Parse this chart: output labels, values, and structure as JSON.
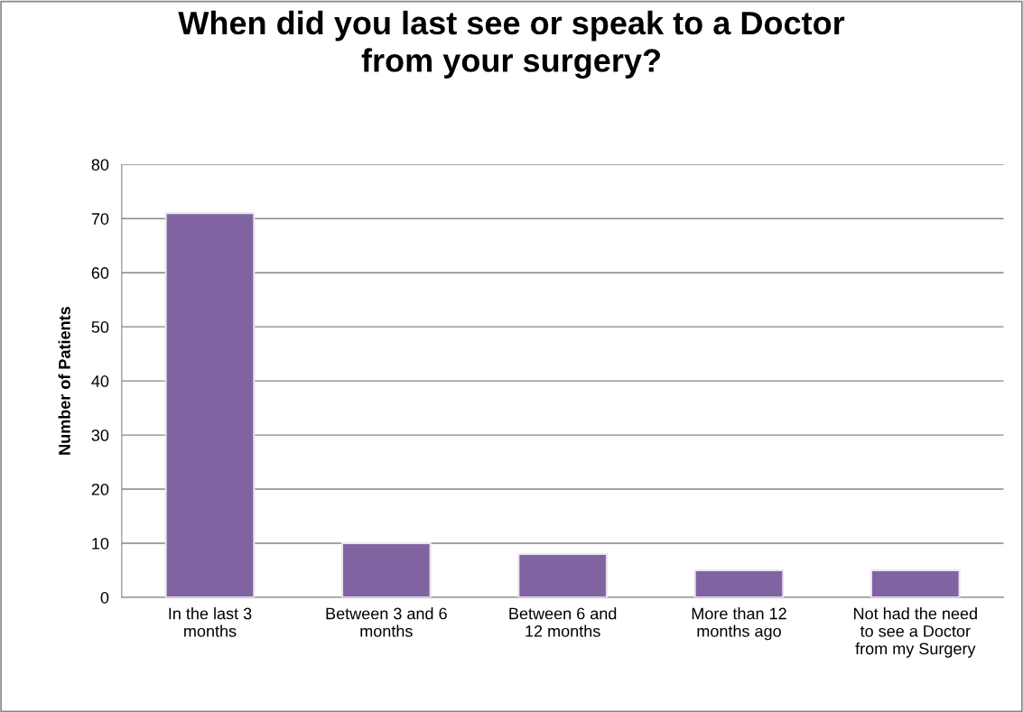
{
  "chart_data": {
    "type": "bar",
    "title": "When did you last see or speak to a Doctor\nfrom your surgery?",
    "ylabel": "Number of Patients",
    "categories": [
      "In the last 3\nmonths",
      "Between 3 and 6\nmonths",
      "Between 6 and\n12 months",
      "More than 12\nmonths ago",
      "Not had the need\nto see a Doctor\nfrom my Surgery"
    ],
    "values": [
      71,
      10,
      8,
      5,
      5
    ],
    "color": "#8064a2",
    "ylim": [
      0,
      80
    ],
    "yticks": [
      0,
      10,
      20,
      30,
      40,
      50,
      60,
      70,
      80
    ],
    "grid": "y",
    "legend": false
  }
}
